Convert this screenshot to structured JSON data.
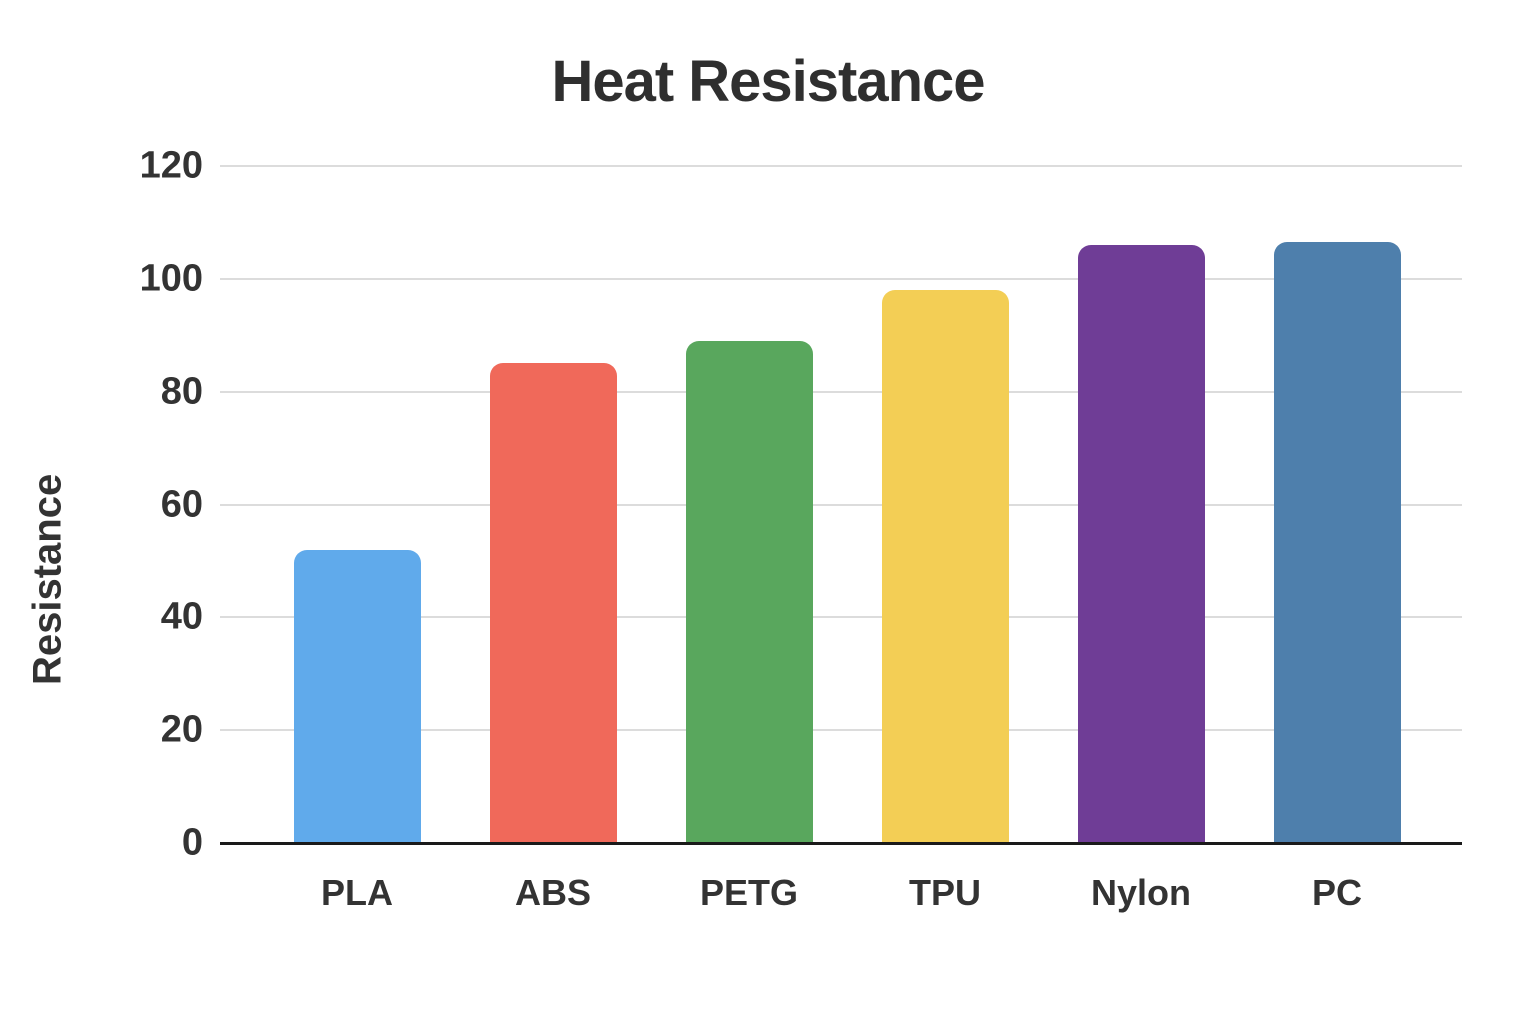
{
  "chart_data": {
    "type": "bar",
    "title": "Heat Resistance",
    "xlabel": "",
    "ylabel": "Resistance",
    "categories": [
      "PLA",
      "ABS",
      "PETG",
      "TPU",
      "Nylon",
      "PC"
    ],
    "values": [
      52,
      85,
      89,
      98,
      106,
      106.5
    ],
    "bar_colors": [
      "#60AAEB",
      "#F0695A",
      "#59A75D",
      "#F3CE55",
      "#6F3D96",
      "#4E7FAC"
    ],
    "yticks": [
      0,
      20,
      40,
      60,
      80,
      100,
      120
    ],
    "ylim": [
      0,
      120
    ],
    "grid": "horizontal",
    "legend": "none",
    "gridline_color": "#dcdcdc",
    "axis_color": "#1a1a1a",
    "text_color": "#333333"
  }
}
